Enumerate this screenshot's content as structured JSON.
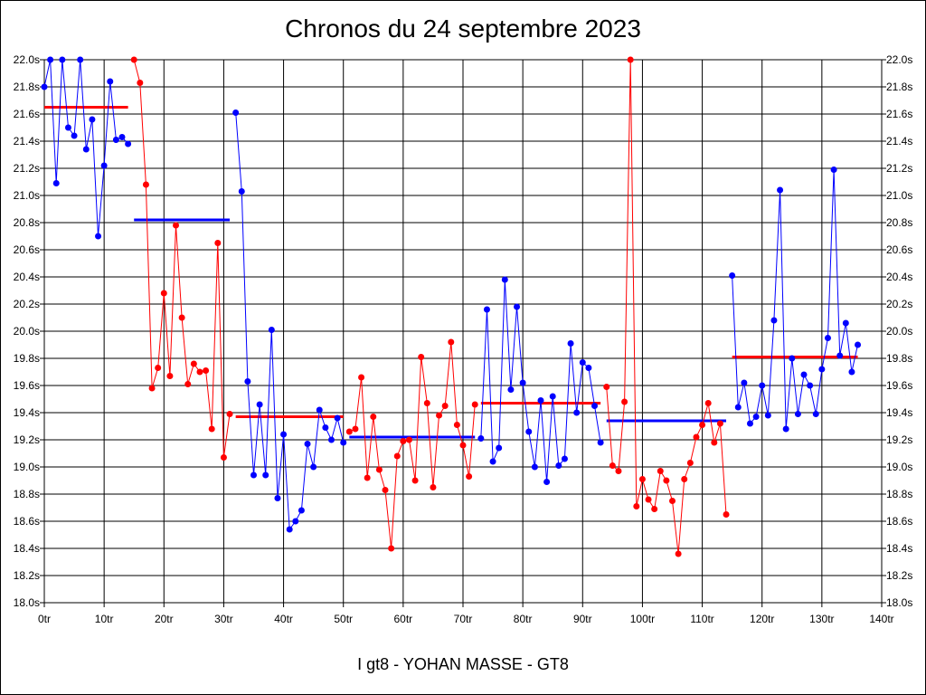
{
  "chart_data": {
    "type": "line",
    "title": "Chronos du 24 septembre 2023",
    "subtitle": "",
    "caption": "I gt8 - YOHAN MASSE - GT8",
    "xlabel": "",
    "ylabel": "",
    "xlim": [
      0,
      140
    ],
    "ylim": [
      18.0,
      22.0
    ],
    "x_ticks": [
      0,
      10,
      20,
      30,
      40,
      50,
      60,
      70,
      80,
      90,
      100,
      110,
      120,
      130,
      140
    ],
    "x_tick_labels": [
      "0tr",
      "10tr",
      "20tr",
      "30tr",
      "40tr",
      "50tr",
      "60tr",
      "70tr",
      "80tr",
      "90tr",
      "100tr",
      "110tr",
      "120tr",
      "130tr",
      "140tr"
    ],
    "y_ticks": [
      18.0,
      18.2,
      18.4,
      18.6,
      18.8,
      19.0,
      19.2,
      19.4,
      19.6,
      19.8,
      20.0,
      20.2,
      20.4,
      20.6,
      20.8,
      21.0,
      21.2,
      21.4,
      21.6,
      21.8,
      22.0
    ],
    "y_tick_labels": [
      "18.0s",
      "18.2s",
      "18.4s",
      "18.6s",
      "18.8s",
      "19.0s",
      "19.2s",
      "19.4s",
      "19.6s",
      "19.8s",
      "20.0s",
      "20.2s",
      "20.4s",
      "20.6s",
      "20.8s",
      "21.0s",
      "21.2s",
      "21.4s",
      "21.6s",
      "21.8s",
      "22.0s"
    ],
    "y_axis_both_sides": true,
    "grid": true,
    "colors": {
      "blue": "#0000ff",
      "red": "#ff0000"
    },
    "series": [
      {
        "color": "blue",
        "x": [
          0,
          1,
          2,
          3,
          4,
          5,
          6,
          7,
          8,
          9,
          10,
          11,
          12,
          13,
          14
        ],
        "y": [
          21.8,
          22.0,
          21.09,
          22.0,
          21.5,
          21.44,
          22.0,
          21.34,
          21.56,
          20.7,
          21.22,
          21.84,
          21.41,
          21.43,
          21.38
        ]
      },
      {
        "color": "red",
        "x": [
          15,
          16,
          17,
          18,
          19,
          20,
          21,
          22,
          23,
          24,
          25,
          26,
          27,
          28,
          29,
          30,
          31
        ],
        "y": [
          22.0,
          21.83,
          21.08,
          19.58,
          19.73,
          20.28,
          19.67,
          20.78,
          20.1,
          19.61,
          19.76,
          19.7,
          19.71,
          19.28,
          20.65,
          19.07,
          19.39
        ]
      },
      {
        "color": "blue",
        "x": [
          32,
          33,
          34,
          35,
          36,
          37,
          38,
          39,
          40,
          41,
          42,
          43,
          44,
          45,
          46,
          47,
          48,
          49,
          50
        ],
        "y": [
          21.61,
          21.03,
          19.63,
          18.94,
          19.46,
          18.94,
          20.01,
          18.77,
          19.24,
          18.54,
          18.6,
          18.68,
          19.17,
          19.0,
          19.42,
          19.29,
          19.2,
          19.36,
          19.18
        ]
      },
      {
        "color": "red",
        "x": [
          51,
          52,
          53,
          54,
          55,
          56,
          57,
          58,
          59,
          60,
          61,
          62,
          63,
          64,
          65,
          66,
          67,
          68,
          69,
          70,
          71,
          72
        ],
        "y": [
          19.26,
          19.28,
          19.66,
          18.92,
          19.37,
          18.98,
          18.83,
          18.4,
          19.08,
          19.19,
          19.2,
          18.9,
          19.81,
          19.47,
          18.85,
          19.38,
          19.45,
          19.92,
          19.31,
          19.16,
          18.93,
          19.46
        ]
      },
      {
        "color": "blue",
        "x": [
          73,
          74,
          75,
          76,
          77,
          78,
          79,
          80,
          81,
          82,
          83,
          84,
          85,
          86,
          87,
          88,
          89,
          90,
          91,
          92,
          93
        ],
        "y": [
          19.21,
          20.16,
          19.04,
          19.14,
          20.38,
          19.57,
          20.18,
          19.62,
          19.26,
          19.0,
          19.49,
          18.89,
          19.52,
          19.01,
          19.06,
          19.91,
          19.4,
          19.77,
          19.73,
          19.45,
          19.18
        ]
      },
      {
        "color": "red",
        "x": [
          94,
          95,
          96,
          97,
          98,
          99,
          100,
          101,
          102,
          103,
          104,
          105,
          106,
          107,
          108,
          109,
          110,
          111,
          112,
          113,
          114
        ],
        "y": [
          19.59,
          19.01,
          18.97,
          19.48,
          22.0,
          18.71,
          18.91,
          18.76,
          18.69,
          18.97,
          18.9,
          18.75,
          18.36,
          18.91,
          19.03,
          19.22,
          19.31,
          19.47,
          19.18,
          19.32,
          18.65
        ]
      },
      {
        "color": "blue",
        "x": [
          115,
          116,
          117,
          118,
          119,
          120,
          121,
          122,
          123,
          124,
          125,
          126,
          127,
          128,
          129,
          130,
          131,
          132,
          133,
          134,
          135,
          136
        ],
        "y": [
          20.41,
          19.44,
          19.62,
          19.32,
          19.37,
          19.6,
          19.38,
          20.08,
          21.04,
          19.28,
          19.8,
          19.39,
          19.68,
          19.6,
          19.39,
          19.72,
          19.95,
          21.19,
          19.82,
          20.06,
          19.7,
          19.9
        ]
      }
    ],
    "averages": [
      {
        "color": "red",
        "x": [
          0,
          14
        ],
        "y": 21.65
      },
      {
        "color": "blue",
        "x": [
          15,
          31
        ],
        "y": 20.82
      },
      {
        "color": "red",
        "x": [
          32,
          50
        ],
        "y": 19.37
      },
      {
        "color": "blue",
        "x": [
          51,
          72
        ],
        "y": 19.22
      },
      {
        "color": "red",
        "x": [
          73,
          93
        ],
        "y": 19.47
      },
      {
        "color": "blue",
        "x": [
          94,
          114
        ],
        "y": 19.34
      },
      {
        "color": "red",
        "x": [
          115,
          136
        ],
        "y": 19.81
      }
    ]
  }
}
